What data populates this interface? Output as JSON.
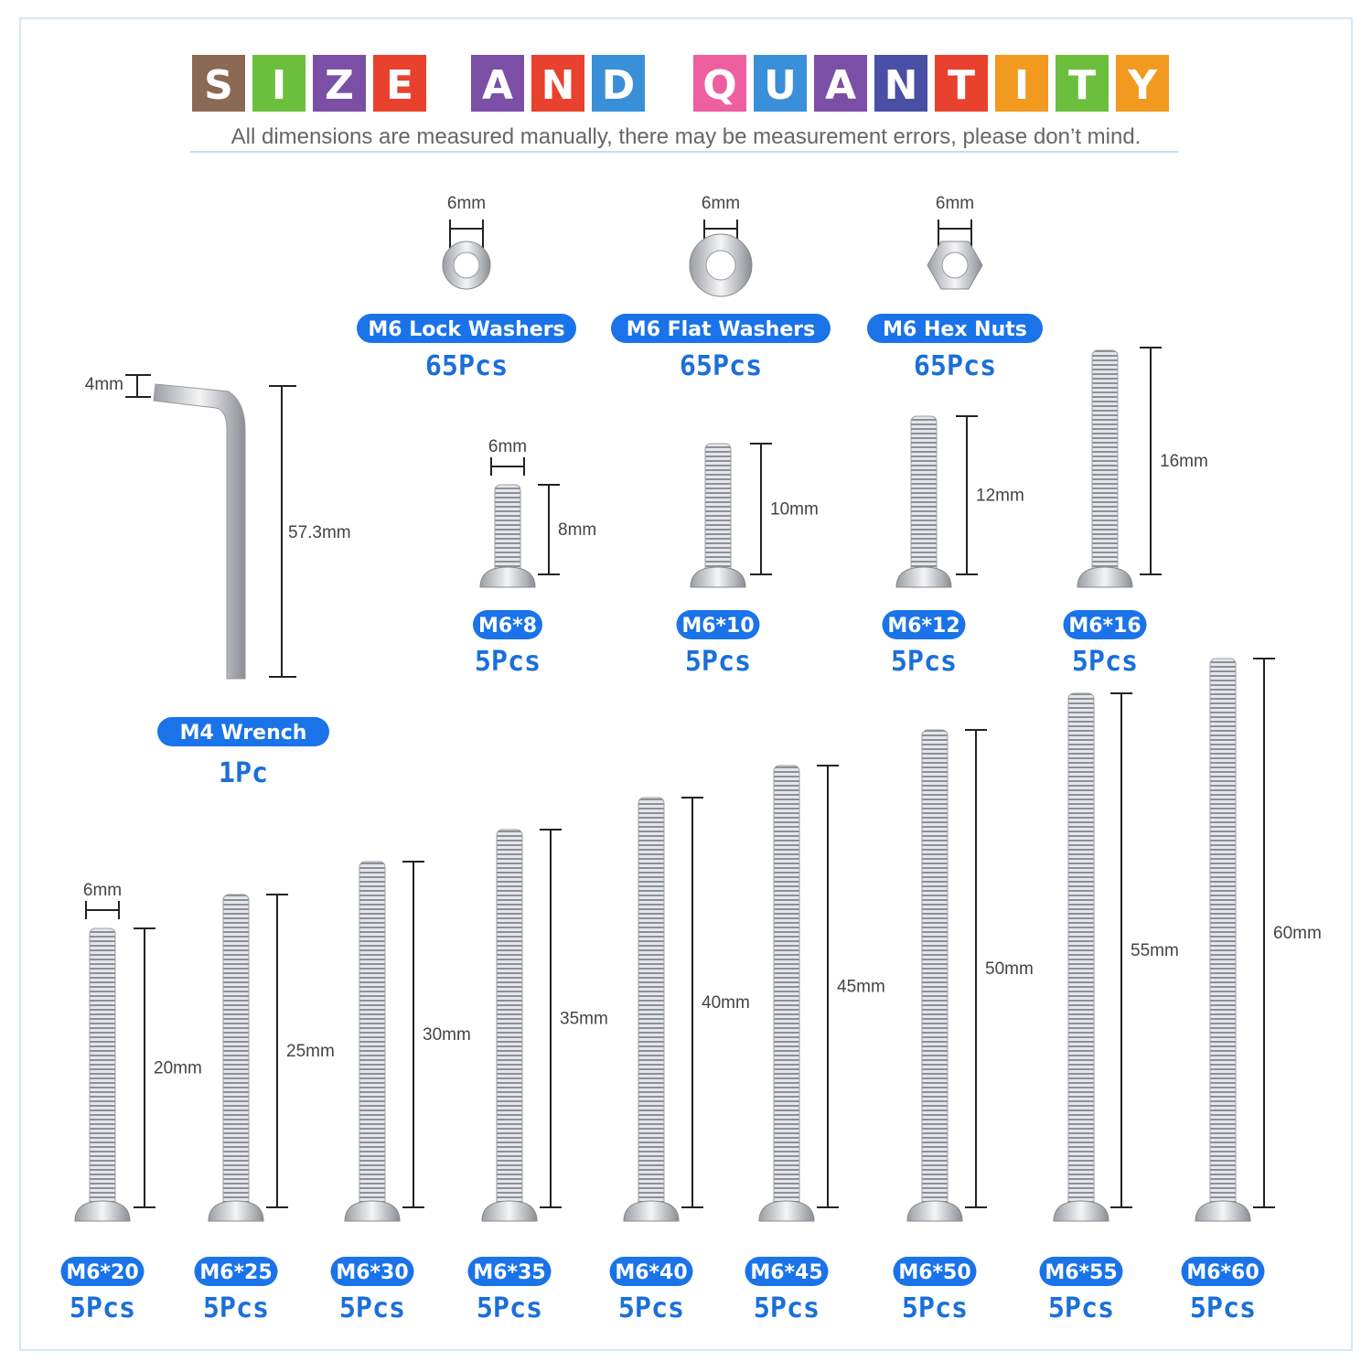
{
  "title": {
    "words": [
      [
        "S",
        "I",
        "Z",
        "E"
      ],
      [
        "A",
        "N",
        "D"
      ],
      [
        "Q",
        "U",
        "A",
        "N",
        "T",
        "I",
        "T",
        "Y"
      ]
    ]
  },
  "subtitle": "All dimensions are measured manually, there may be measurement errors, please don’t mind.",
  "washers": [
    {
      "name": "M6 Lock Washers",
      "qty": "65Pcs",
      "dimension": "6mm"
    },
    {
      "name": "M6 Flat Washers",
      "qty": "65Pcs",
      "dimension": "6mm"
    },
    {
      "name": "M6 Hex Nuts",
      "qty": "65Pcs",
      "dimension": "6mm"
    }
  ],
  "wrench": {
    "name": "M4 Wrench",
    "qty": "1Pc",
    "thickness": "4mm",
    "length": "57.3mm"
  },
  "screws": [
    {
      "name": "M6*8",
      "qty": "5Pcs",
      "diameter": "6mm",
      "length": "8mm"
    },
    {
      "name": "M6*10",
      "qty": "5Pcs",
      "length": "10mm"
    },
    {
      "name": "M6*12",
      "qty": "5Pcs",
      "length": "12mm"
    },
    {
      "name": "M6*16",
      "qty": "5Pcs",
      "length": "16mm"
    },
    {
      "name": "M6*20",
      "qty": "5Pcs",
      "diameter": "6mm",
      "length": "20mm"
    },
    {
      "name": "M6*25",
      "qty": "5Pcs",
      "length": "25mm"
    },
    {
      "name": "M6*30",
      "qty": "5Pcs",
      "length": "30mm"
    },
    {
      "name": "M6*35",
      "qty": "5Pcs",
      "length": "35mm"
    },
    {
      "name": "M6*40",
      "qty": "5Pcs",
      "length": "40mm"
    },
    {
      "name": "M6*45",
      "qty": "5Pcs",
      "length": "45mm"
    },
    {
      "name": "M6*50",
      "qty": "5Pcs",
      "length": "50mm"
    },
    {
      "name": "M6*55",
      "qty": "5Pcs",
      "length": "55mm"
    },
    {
      "name": "M6*60",
      "qty": "5Pcs",
      "length": "60mm"
    }
  ]
}
